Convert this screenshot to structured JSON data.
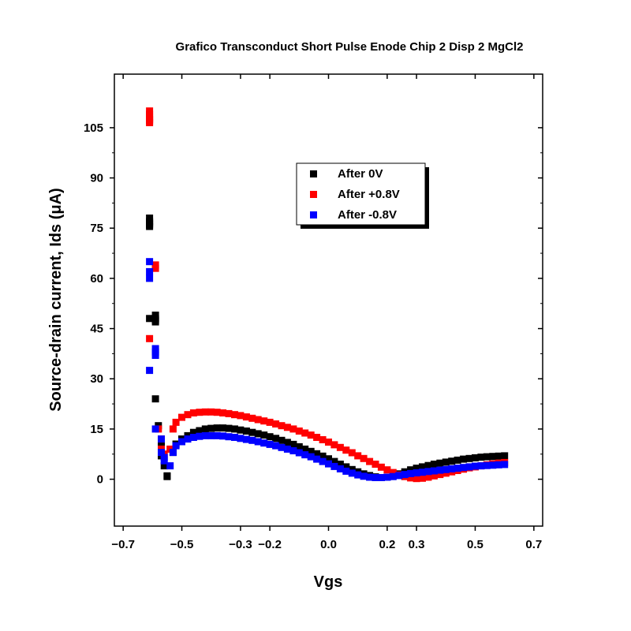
{
  "chart_data": {
    "type": "scatter",
    "title": "Grafico Transconduct Short Pulse Enode Chip 2 Disp 2 MgCl2",
    "xlabel": "Vgs",
    "ylabel": "Source-drain current, Ids (μA)",
    "xlim": [
      -0.73,
      0.73
    ],
    "ylim": [
      -14,
      121
    ],
    "xticks": [
      -0.7,
      -0.5,
      -0.3,
      -0.2,
      0.0,
      0.2,
      0.3,
      0.5,
      0.7
    ],
    "xtick_labels": [
      "−0.7",
      "−0.5",
      "−0.3",
      "−0.2",
      "0.0",
      "0.2",
      "0.3",
      "0.5",
      "0.7"
    ],
    "yticks": [
      0,
      15,
      30,
      45,
      60,
      75,
      90,
      105
    ],
    "ytick_labels": [
      "0",
      "15",
      "30",
      "45",
      "60",
      "75",
      "90",
      "105"
    ],
    "grid": false,
    "legend_position": "upper-right",
    "series": [
      {
        "name": "After 0V",
        "color": "#000000",
        "points": [
          [
            -0.61,
            78
          ],
          [
            -0.61,
            77
          ],
          [
            -0.61,
            76.5
          ],
          [
            -0.61,
            76
          ],
          [
            -0.61,
            75.5
          ],
          [
            -0.61,
            48
          ],
          [
            -0.59,
            49
          ],
          [
            -0.59,
            48
          ],
          [
            -0.59,
            47.5
          ],
          [
            -0.59,
            47
          ],
          [
            -0.59,
            24
          ],
          [
            -0.58,
            16
          ],
          [
            -0.57,
            10
          ],
          [
            -0.57,
            7
          ],
          [
            -0.56,
            4
          ],
          [
            -0.55,
            1
          ],
          [
            -0.55,
            0.8
          ],
          [
            -0.53,
            8
          ],
          [
            -0.52,
            10.5
          ],
          [
            -0.5,
            12
          ],
          [
            -0.48,
            13
          ],
          [
            -0.46,
            14
          ],
          [
            -0.44,
            14.5
          ],
          [
            -0.42,
            15
          ],
          [
            -0.4,
            15.2
          ],
          [
            -0.38,
            15.3
          ],
          [
            -0.36,
            15.3
          ],
          [
            -0.34,
            15.2
          ],
          [
            -0.32,
            15
          ],
          [
            -0.3,
            14.7
          ],
          [
            -0.28,
            14.4
          ],
          [
            -0.26,
            14
          ],
          [
            -0.24,
            13.6
          ],
          [
            -0.22,
            13.2
          ],
          [
            -0.2,
            12.7
          ],
          [
            -0.18,
            12.2
          ],
          [
            -0.16,
            11.6
          ],
          [
            -0.14,
            11
          ],
          [
            -0.12,
            10.4
          ],
          [
            -0.1,
            9.7
          ],
          [
            -0.08,
            9
          ],
          [
            -0.06,
            8.3
          ],
          [
            -0.04,
            7.6
          ],
          [
            -0.02,
            6.9
          ],
          [
            0.0,
            6.1
          ],
          [
            0.02,
            5.3
          ],
          [
            0.04,
            4.5
          ],
          [
            0.06,
            3.7
          ],
          [
            0.08,
            2.9
          ],
          [
            0.1,
            2.2
          ],
          [
            0.12,
            1.6
          ],
          [
            0.14,
            1.1
          ],
          [
            0.16,
            0.7
          ],
          [
            0.18,
            0.5
          ],
          [
            0.2,
            0.6
          ],
          [
            0.22,
            1.0
          ],
          [
            0.24,
            1.6
          ],
          [
            0.26,
            2.2
          ],
          [
            0.28,
            2.8
          ],
          [
            0.3,
            3.3
          ],
          [
            0.32,
            3.7
          ],
          [
            0.34,
            4.1
          ],
          [
            0.36,
            4.5
          ],
          [
            0.38,
            4.8
          ],
          [
            0.4,
            5.1
          ],
          [
            0.42,
            5.4
          ],
          [
            0.44,
            5.7
          ],
          [
            0.46,
            6.0
          ],
          [
            0.48,
            6.2
          ],
          [
            0.5,
            6.4
          ],
          [
            0.52,
            6.6
          ],
          [
            0.54,
            6.7
          ],
          [
            0.56,
            6.8
          ],
          [
            0.58,
            6.9
          ],
          [
            0.6,
            7.0
          ]
        ]
      },
      {
        "name": "After +0.8V",
        "color": "#ff0000",
        "points": [
          [
            -0.61,
            110
          ],
          [
            -0.61,
            109
          ],
          [
            -0.61,
            108
          ],
          [
            -0.61,
            107.5
          ],
          [
            -0.61,
            107
          ],
          [
            -0.61,
            106.5
          ],
          [
            -0.61,
            42
          ],
          [
            -0.59,
            64
          ],
          [
            -0.59,
            63
          ],
          [
            -0.58,
            15
          ],
          [
            -0.57,
            12
          ],
          [
            -0.57,
            9
          ],
          [
            -0.56,
            7.5
          ],
          [
            -0.54,
            9
          ],
          [
            -0.53,
            15
          ],
          [
            -0.52,
            17
          ],
          [
            -0.5,
            18.5
          ],
          [
            -0.48,
            19.3
          ],
          [
            -0.46,
            19.8
          ],
          [
            -0.44,
            20
          ],
          [
            -0.42,
            20.1
          ],
          [
            -0.4,
            20.1
          ],
          [
            -0.38,
            20
          ],
          [
            -0.36,
            19.8
          ],
          [
            -0.34,
            19.6
          ],
          [
            -0.32,
            19.3
          ],
          [
            -0.3,
            19
          ],
          [
            -0.28,
            18.6
          ],
          [
            -0.26,
            18.2
          ],
          [
            -0.24,
            17.8
          ],
          [
            -0.22,
            17.4
          ],
          [
            -0.2,
            17
          ],
          [
            -0.18,
            16.5
          ],
          [
            -0.16,
            16
          ],
          [
            -0.14,
            15.5
          ],
          [
            -0.12,
            15
          ],
          [
            -0.1,
            14.4
          ],
          [
            -0.08,
            13.8
          ],
          [
            -0.06,
            13.2
          ],
          [
            -0.04,
            12.5
          ],
          [
            -0.02,
            11.8
          ],
          [
            0.0,
            11.1
          ],
          [
            0.02,
            10.3
          ],
          [
            0.04,
            9.5
          ],
          [
            0.06,
            8.7
          ],
          [
            0.08,
            7.9
          ],
          [
            0.1,
            7.0
          ],
          [
            0.12,
            6.2
          ],
          [
            0.14,
            5.3
          ],
          [
            0.16,
            4.5
          ],
          [
            0.18,
            3.6
          ],
          [
            0.2,
            2.8
          ],
          [
            0.22,
            2.0
          ],
          [
            0.24,
            1.3
          ],
          [
            0.26,
            0.8
          ],
          [
            0.28,
            0.4
          ],
          [
            0.3,
            0.2
          ],
          [
            0.32,
            0.3
          ],
          [
            0.34,
            0.6
          ],
          [
            0.36,
            1.0
          ],
          [
            0.38,
            1.4
          ],
          [
            0.4,
            1.8
          ],
          [
            0.42,
            2.2
          ],
          [
            0.44,
            2.6
          ],
          [
            0.46,
            3.0
          ],
          [
            0.48,
            3.4
          ],
          [
            0.5,
            3.7
          ],
          [
            0.52,
            4.0
          ],
          [
            0.54,
            4.3
          ],
          [
            0.56,
            4.6
          ],
          [
            0.58,
            4.8
          ],
          [
            0.6,
            5.0
          ]
        ]
      },
      {
        "name": "After -0.8V",
        "color": "#0000ff",
        "points": [
          [
            -0.61,
            65
          ],
          [
            -0.61,
            62
          ],
          [
            -0.61,
            60
          ],
          [
            -0.61,
            32.5
          ],
          [
            -0.59,
            39
          ],
          [
            -0.59,
            38
          ],
          [
            -0.59,
            37
          ],
          [
            -0.59,
            15
          ],
          [
            -0.57,
            12
          ],
          [
            -0.57,
            8
          ],
          [
            -0.56,
            6.5
          ],
          [
            -0.56,
            5.5
          ],
          [
            -0.54,
            4
          ],
          [
            -0.53,
            8
          ],
          [
            -0.52,
            10
          ],
          [
            -0.5,
            11.2
          ],
          [
            -0.48,
            12
          ],
          [
            -0.46,
            12.5
          ],
          [
            -0.44,
            12.8
          ],
          [
            -0.42,
            13
          ],
          [
            -0.4,
            13
          ],
          [
            -0.38,
            13
          ],
          [
            -0.36,
            12.9
          ],
          [
            -0.34,
            12.7
          ],
          [
            -0.32,
            12.5
          ],
          [
            -0.3,
            12.2
          ],
          [
            -0.28,
            11.9
          ],
          [
            -0.26,
            11.6
          ],
          [
            -0.24,
            11.2
          ],
          [
            -0.22,
            10.8
          ],
          [
            -0.2,
            10.4
          ],
          [
            -0.18,
            10
          ],
          [
            -0.16,
            9.5
          ],
          [
            -0.14,
            9
          ],
          [
            -0.12,
            8.5
          ],
          [
            -0.1,
            7.9
          ],
          [
            -0.08,
            7.3
          ],
          [
            -0.06,
            6.7
          ],
          [
            -0.04,
            6
          ],
          [
            -0.02,
            5.3
          ],
          [
            0.0,
            4.6
          ],
          [
            0.02,
            3.8
          ],
          [
            0.04,
            3.1
          ],
          [
            0.06,
            2.4
          ],
          [
            0.08,
            1.8
          ],
          [
            0.1,
            1.3
          ],
          [
            0.12,
            0.9
          ],
          [
            0.14,
            0.6
          ],
          [
            0.16,
            0.5
          ],
          [
            0.18,
            0.5
          ],
          [
            0.2,
            0.6
          ],
          [
            0.22,
            0.8
          ],
          [
            0.24,
            1.1
          ],
          [
            0.26,
            1.4
          ],
          [
            0.28,
            1.7
          ],
          [
            0.3,
            1.9
          ],
          [
            0.32,
            2.1
          ],
          [
            0.34,
            2.3
          ],
          [
            0.36,
            2.5
          ],
          [
            0.38,
            2.7
          ],
          [
            0.4,
            2.9
          ],
          [
            0.42,
            3.1
          ],
          [
            0.44,
            3.3
          ],
          [
            0.46,
            3.5
          ],
          [
            0.48,
            3.7
          ],
          [
            0.5,
            3.9
          ],
          [
            0.52,
            4.0
          ],
          [
            0.54,
            4.1
          ],
          [
            0.56,
            4.2
          ],
          [
            0.58,
            4.3
          ],
          [
            0.6,
            4.4
          ]
        ]
      }
    ]
  }
}
